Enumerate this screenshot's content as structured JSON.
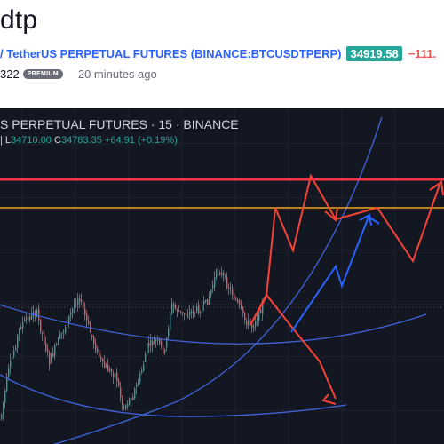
{
  "header": {
    "title": "dtp",
    "symbol_text": "/ TetherUS PERPETUAL FUTURES (BINANCE:BTCUSDTPERP)",
    "price": "34919.58",
    "change": "−111.",
    "author_fragment": "322",
    "badge": "PREMIUM",
    "time_ago": "20 minutes ago"
  },
  "chart": {
    "legend_title": "S PERPETUAL FUTURES · 15 · BINANCE",
    "ohlc": {
      "l_label": "L",
      "l_value": "34710.00",
      "c_label": "C",
      "c_value": "34783.35",
      "change": "+64.91 (+0.19%)"
    },
    "colors": {
      "background": "#131722",
      "up": "#26a69a",
      "down": "#ef5350",
      "resistance_line": "#f23645",
      "support_line": "#f5a623",
      "projection_red": "#f44336",
      "projection_blue": "#2962ff",
      "arc": "#3f63d8"
    }
  }
}
